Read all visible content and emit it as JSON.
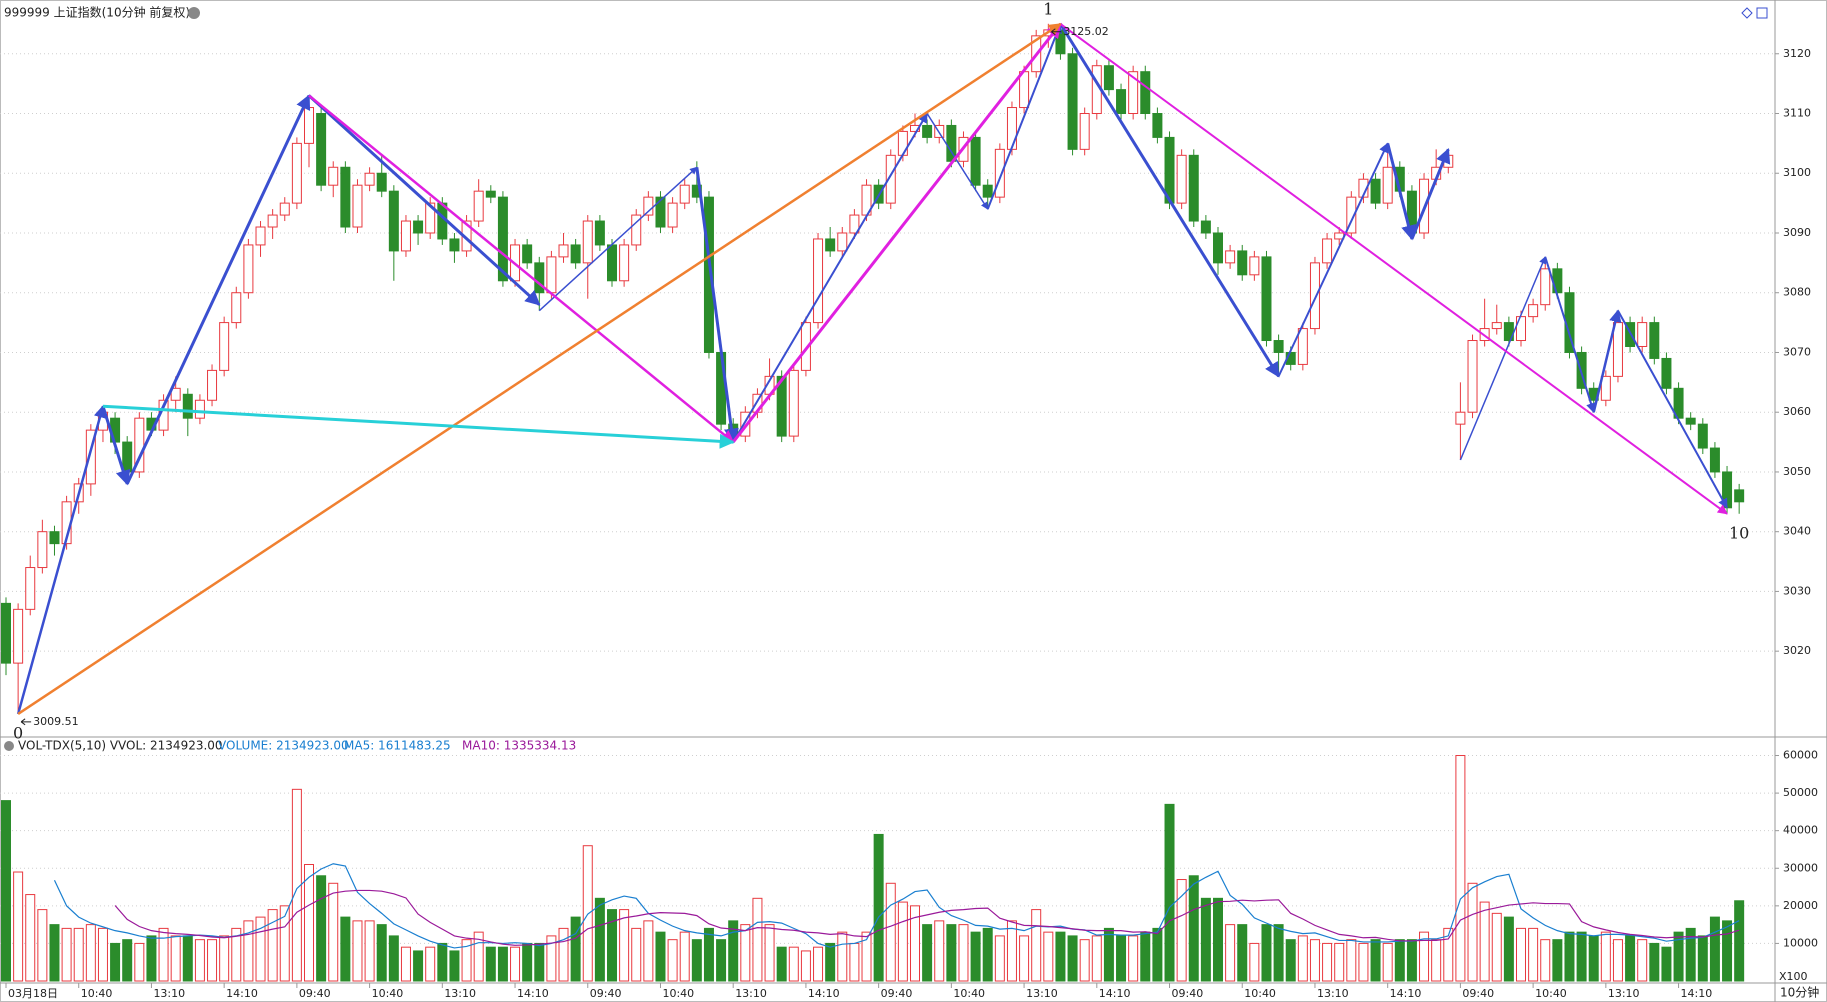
{
  "chart_data": {
    "type": "candlestick",
    "title": "999999 上证指数(10分钟 前复权)",
    "period_label": "10分钟",
    "up_color": "#e8393f",
    "down_color": "#2b8c2b",
    "ylim": [
      3005.8,
      3129
    ],
    "yticks": [
      3020,
      3030,
      3040,
      3050,
      3060,
      3070,
      3080,
      3090,
      3100,
      3110,
      3120
    ],
    "grid": true,
    "xticks": [
      {
        "value": 0,
        "label": "03月18日"
      },
      {
        "value": 6,
        "label": "10:40"
      },
      {
        "value": 12,
        "label": "13:10"
      },
      {
        "value": 18,
        "label": "14:10"
      },
      {
        "value": 24,
        "label": "09:40"
      },
      {
        "value": 30,
        "label": "10:40"
      },
      {
        "value": 36,
        "label": "13:10"
      },
      {
        "value": 42,
        "label": "14:10"
      },
      {
        "value": 48,
        "label": "09:40"
      },
      {
        "value": 54,
        "label": "10:40"
      },
      {
        "value": 60,
        "label": "13:10"
      },
      {
        "value": 66,
        "label": "14:10"
      },
      {
        "value": 72,
        "label": "09:40"
      },
      {
        "value": 78,
        "label": "10:40"
      },
      {
        "value": 84,
        "label": "13:10"
      },
      {
        "value": 90,
        "label": "14:10"
      },
      {
        "value": 96,
        "label": "09:40"
      },
      {
        "value": 102,
        "label": "10:40"
      },
      {
        "value": 108,
        "label": "13:10"
      },
      {
        "value": 114,
        "label": "14:10"
      },
      {
        "value": 120,
        "label": "09:40"
      },
      {
        "value": 126,
        "label": "10:40"
      },
      {
        "value": 132,
        "label": "13:10"
      },
      {
        "value": 138,
        "label": "14:10"
      }
    ],
    "candles": [
      [
        3028,
        3029,
        3016,
        3018
      ],
      [
        3018,
        3028,
        3009.51,
        3027
      ],
      [
        3027,
        3036,
        3026,
        3034
      ],
      [
        3034,
        3042,
        3033,
        3040
      ],
      [
        3040,
        3041,
        3036,
        3038
      ],
      [
        3038,
        3046,
        3037,
        3045
      ],
      [
        3045,
        3049,
        3043,
        3048
      ],
      [
        3048,
        3058,
        3046,
        3057
      ],
      [
        3057,
        3061,
        3055,
        3060
      ],
      [
        3059,
        3060,
        3053,
        3055
      ],
      [
        3055,
        3056,
        3048,
        3050
      ],
      [
        3050,
        3060,
        3049,
        3059
      ],
      [
        3059,
        3060,
        3056,
        3057
      ],
      [
        3057,
        3063,
        3056,
        3062
      ],
      [
        3062,
        3066,
        3060,
        3064
      ],
      [
        3063,
        3064,
        3056,
        3059
      ],
      [
        3059,
        3063,
        3058,
        3062
      ],
      [
        3062,
        3068,
        3061,
        3067
      ],
      [
        3067,
        3076,
        3066,
        3075
      ],
      [
        3075,
        3081,
        3074,
        3080
      ],
      [
        3080,
        3089,
        3079,
        3088
      ],
      [
        3088,
        3092,
        3086,
        3091
      ],
      [
        3091,
        3094,
        3089,
        3093
      ],
      [
        3093,
        3096,
        3092,
        3095
      ],
      [
        3095,
        3106,
        3094,
        3105
      ],
      [
        3105,
        3113,
        3101,
        3111
      ],
      [
        3110,
        3111,
        3097,
        3098
      ],
      [
        3098,
        3102,
        3096,
        3101
      ],
      [
        3101,
        3102,
        3090,
        3091
      ],
      [
        3091,
        3099,
        3090,
        3098
      ],
      [
        3098,
        3101,
        3097,
        3100
      ],
      [
        3100,
        3103,
        3096,
        3097
      ],
      [
        3097,
        3098,
        3082,
        3087
      ],
      [
        3087,
        3093,
        3086,
        3092
      ],
      [
        3092,
        3093,
        3088,
        3090
      ],
      [
        3090,
        3096,
        3089,
        3095
      ],
      [
        3095,
        3096,
        3088,
        3089
      ],
      [
        3089,
        3090,
        3085,
        3087
      ],
      [
        3087,
        3093,
        3086,
        3092
      ],
      [
        3092,
        3099,
        3091,
        3097
      ],
      [
        3097,
        3098,
        3095,
        3096
      ],
      [
        3096,
        3097,
        3081,
        3082
      ],
      [
        3082,
        3089,
        3081,
        3088
      ],
      [
        3088,
        3089,
        3084,
        3085
      ],
      [
        3085,
        3086,
        3077,
        3080
      ],
      [
        3080,
        3087,
        3079,
        3086
      ],
      [
        3086,
        3090,
        3085,
        3088
      ],
      [
        3088,
        3089,
        3084,
        3085
      ],
      [
        3085,
        3093,
        3079,
        3092
      ],
      [
        3092,
        3093,
        3087,
        3088
      ],
      [
        3088,
        3089,
        3081,
        3082
      ],
      [
        3082,
        3089,
        3081,
        3088
      ],
      [
        3088,
        3094,
        3087,
        3093
      ],
      [
        3093,
        3097,
        3092,
        3096
      ],
      [
        3096,
        3097,
        3090,
        3091
      ],
      [
        3091,
        3096,
        3090,
        3095
      ],
      [
        3095,
        3099,
        3094,
        3098
      ],
      [
        3098,
        3102,
        3095,
        3096
      ],
      [
        3096,
        3097,
        3069,
        3070
      ],
      [
        3070,
        3071,
        3057,
        3058
      ],
      [
        3058,
        3059,
        3055,
        3056
      ],
      [
        3056,
        3061,
        3055,
        3060
      ],
      [
        3060,
        3064,
        3059,
        3063
      ],
      [
        3063,
        3069,
        3062,
        3066
      ],
      [
        3066,
        3067,
        3055,
        3056
      ],
      [
        3056,
        3068,
        3055,
        3067
      ],
      [
        3067,
        3076,
        3066,
        3075
      ],
      [
        3075,
        3090,
        3074,
        3089
      ],
      [
        3089,
        3091,
        3086,
        3087
      ],
      [
        3087,
        3091,
        3086,
        3090
      ],
      [
        3090,
        3094,
        3089,
        3093
      ],
      [
        3093,
        3099,
        3092,
        3098
      ],
      [
        3098,
        3099,
        3094,
        3095
      ],
      [
        3095,
        3104,
        3094,
        3103
      ],
      [
        3103,
        3108,
        3102,
        3107
      ],
      [
        3107,
        3110,
        3106,
        3108
      ],
      [
        3108,
        3109,
        3105,
        3106
      ],
      [
        3106,
        3109,
        3105,
        3108
      ],
      [
        3108,
        3109,
        3101,
        3102
      ],
      [
        3102,
        3107,
        3101,
        3106
      ],
      [
        3106,
        3107,
        3097,
        3098
      ],
      [
        3098,
        3099,
        3094,
        3096
      ],
      [
        3096,
        3105,
        3095,
        3104
      ],
      [
        3104,
        3112,
        3103,
        3111
      ],
      [
        3111,
        3118,
        3110,
        3117
      ],
      [
        3117,
        3124,
        3116,
        3123
      ],
      [
        3123,
        3125.02,
        3121,
        3124
      ],
      [
        3124,
        3125,
        3119,
        3120
      ],
      [
        3120,
        3121,
        3103,
        3104
      ],
      [
        3104,
        3111,
        3103,
        3110
      ],
      [
        3110,
        3119,
        3109,
        3118
      ],
      [
        3118,
        3119,
        3113,
        3114
      ],
      [
        3114,
        3115,
        3109,
        3110
      ],
      [
        3110,
        3118,
        3109,
        3117
      ],
      [
        3117,
        3118,
        3109,
        3110
      ],
      [
        3110,
        3111,
        3105,
        3106
      ],
      [
        3106,
        3107,
        3094,
        3095
      ],
      [
        3095,
        3104,
        3094,
        3103
      ],
      [
        3103,
        3104,
        3091,
        3092
      ],
      [
        3092,
        3093,
        3089,
        3090
      ],
      [
        3090,
        3091,
        3083,
        3085
      ],
      [
        3085,
        3088,
        3084,
        3087
      ],
      [
        3087,
        3088,
        3082,
        3083
      ],
      [
        3083,
        3087,
        3082,
        3086
      ],
      [
        3086,
        3087,
        3071,
        3072
      ],
      [
        3072,
        3073,
        3066,
        3070
      ],
      [
        3070,
        3071,
        3067,
        3068
      ],
      [
        3068,
        3075,
        3067,
        3074
      ],
      [
        3074,
        3086,
        3073,
        3085
      ],
      [
        3085,
        3090,
        3084,
        3089
      ],
      [
        3089,
        3091,
        3088,
        3090
      ],
      [
        3090,
        3097,
        3089,
        3096
      ],
      [
        3096,
        3100,
        3095,
        3099
      ],
      [
        3099,
        3100,
        3094,
        3095
      ],
      [
        3095,
        3105,
        3094,
        3101
      ],
      [
        3101,
        3102,
        3096,
        3097
      ],
      [
        3097,
        3098,
        3089,
        3090
      ],
      [
        3090,
        3100,
        3089,
        3099
      ],
      [
        3099,
        3104,
        3098,
        3101
      ],
      [
        3101,
        3104,
        3100,
        3103
      ],
      [
        3058,
        3065,
        3052,
        3060
      ],
      [
        3060,
        3073,
        3059,
        3072
      ],
      [
        3072,
        3079,
        3071,
        3074
      ],
      [
        3074,
        3078,
        3073,
        3075
      ],
      [
        3075,
        3076,
        3071,
        3072
      ],
      [
        3072,
        3077,
        3071,
        3076
      ],
      [
        3076,
        3079,
        3075,
        3078
      ],
      [
        3078,
        3086,
        3077,
        3084
      ],
      [
        3084,
        3085,
        3079,
        3080
      ],
      [
        3080,
        3081,
        3069,
        3070
      ],
      [
        3070,
        3071,
        3063,
        3064
      ],
      [
        3064,
        3065,
        3060,
        3062
      ],
      [
        3062,
        3067,
        3061,
        3066
      ],
      [
        3066,
        3077,
        3065,
        3075
      ],
      [
        3075,
        3076,
        3070,
        3071
      ],
      [
        3071,
        3076,
        3070,
        3075
      ],
      [
        3075,
        3076,
        3068,
        3069
      ],
      [
        3069,
        3070,
        3063,
        3064
      ],
      [
        3064,
        3065,
        3058,
        3059
      ],
      [
        3059,
        3060,
        3057,
        3058
      ],
      [
        3058,
        3059,
        3053,
        3054
      ],
      [
        3054,
        3055,
        3049,
        3050
      ],
      [
        3050,
        3051,
        3043,
        3044
      ],
      [
        3047,
        3048,
        3043,
        3045
      ]
    ],
    "extreme_labels": [
      {
        "text": "3009.51",
        "index": 1,
        "price": 3009.51
      },
      {
        "text": "3125.02",
        "index": 86,
        "price": 3125.02
      }
    ],
    "wave_labels": [
      {
        "text": "0",
        "index": 1,
        "price": 3009.51,
        "side": "below"
      },
      {
        "text": "1",
        "index": 86,
        "price": 3125.02,
        "side": "above"
      },
      {
        "text": "10",
        "index": 143,
        "price": 3043,
        "side": "below"
      }
    ],
    "trend_lines": [
      {
        "color": "#3a4fd0",
        "width": 2.5,
        "from": [
          1,
          3009.5
        ],
        "to": [
          8,
          3061
        ]
      },
      {
        "color": "#3a4fd0",
        "width": 3,
        "from": [
          8,
          3061
        ],
        "to": [
          10,
          3048
        ]
      },
      {
        "color": "#3a4fd0",
        "width": 3,
        "from": [
          10,
          3048
        ],
        "to": [
          25,
          3113
        ]
      },
      {
        "color": "#3a4fd0",
        "width": 3,
        "from": [
          25,
          3113
        ],
        "to": [
          44,
          3078
        ]
      },
      {
        "color": "#3a4fd0",
        "width": 1.5,
        "from": [
          44,
          3077
        ],
        "to": [
          57,
          3101
        ]
      },
      {
        "color": "#3a4fd0",
        "width": 3,
        "from": [
          57,
          3101
        ],
        "to": [
          60,
          3055
        ]
      },
      {
        "color": "#3a4fd0",
        "width": 2,
        "from": [
          60,
          3055
        ],
        "to": [
          76,
          3110
        ]
      },
      {
        "color": "#3a4fd0",
        "width": 1.5,
        "from": [
          76,
          3110
        ],
        "to": [
          81,
          3094
        ]
      },
      {
        "color": "#3a4fd0",
        "width": 2,
        "from": [
          81,
          3094
        ],
        "to": [
          87,
          3125
        ]
      },
      {
        "color": "#3a4fd0",
        "width": 3,
        "from": [
          87,
          3125
        ],
        "to": [
          105,
          3066
        ]
      },
      {
        "color": "#3a4fd0",
        "width": 2,
        "from": [
          105,
          3066
        ],
        "to": [
          114,
          3105
        ]
      },
      {
        "color": "#3a4fd0",
        "width": 3,
        "from": [
          114,
          3105
        ],
        "to": [
          116,
          3089
        ]
      },
      {
        "color": "#3a4fd0",
        "width": 3,
        "from": [
          116,
          3089
        ],
        "to": [
          119,
          3104
        ]
      },
      {
        "color": "#3a4fd0",
        "width": 1.5,
        "from": [
          120,
          3052
        ],
        "to": [
          127,
          3086
        ]
      },
      {
        "color": "#3a4fd0",
        "width": 2,
        "from": [
          127,
          3086
        ],
        "to": [
          131,
          3060
        ]
      },
      {
        "color": "#3a4fd0",
        "width": 2.5,
        "from": [
          131,
          3060
        ],
        "to": [
          133,
          3077
        ]
      },
      {
        "color": "#3a4fd0",
        "width": 2,
        "from": [
          133,
          3077
        ],
        "to": [
          142,
          3044
        ]
      },
      {
        "color": "#e020e0",
        "width": 2.5,
        "from": [
          25,
          3113
        ],
        "to": [
          60,
          3055
        ]
      },
      {
        "color": "#e020e0",
        "width": 3,
        "from": [
          60,
          3055
        ],
        "to": [
          87,
          3125
        ]
      },
      {
        "color": "#e020e0",
        "width": 2,
        "from": [
          87,
          3125
        ],
        "to": [
          142,
          3043
        ]
      },
      {
        "color": "#f08030",
        "width": 2.5,
        "from": [
          1,
          3009.5
        ],
        "to": [
          87,
          3125
        ]
      },
      {
        "color": "#28d0d8",
        "width": 3,
        "from": [
          8,
          3061
        ],
        "to": [
          60,
          3055
        ]
      }
    ],
    "volume": {
      "header": "VOL-TDX(5,10)  VVOL: 2134923.00",
      "volume_label": "VOLUME: 2134923.00",
      "ma5_label": "MA5: 1611483.25",
      "ma10_label": "MA10: 1335334.13",
      "unit_label": "X100",
      "ma5_color": "#1a7fd0",
      "ma10_color": "#9a1a9a",
      "ylim": [
        0,
        62000
      ],
      "yticks": [
        10000,
        20000,
        30000,
        40000,
        50000,
        60000
      ],
      "values": [
        48000,
        29000,
        23000,
        19000,
        15000,
        14000,
        14000,
        15000,
        14000,
        10000,
        11000,
        10000,
        12000,
        14000,
        12000,
        12000,
        11000,
        11000,
        12000,
        14000,
        16000,
        17000,
        19000,
        20000,
        51000,
        31000,
        28000,
        26000,
        17000,
        16000,
        16000,
        15000,
        12000,
        9000,
        8000,
        9000,
        10000,
        8000,
        11000,
        13000,
        9000,
        9000,
        9000,
        10000,
        10000,
        12000,
        14000,
        17000,
        36000,
        22000,
        19000,
        19000,
        14000,
        16000,
        13000,
        11000,
        13000,
        11000,
        14000,
        11000,
        16000,
        15000,
        22000,
        15000,
        9000,
        9000,
        8000,
        9000,
        10000,
        13000,
        10000,
        13000,
        39000,
        26000,
        21000,
        20000,
        15000,
        16000,
        15000,
        15000,
        13000,
        14000,
        12000,
        16000,
        12000,
        19000,
        13000,
        13000,
        12000,
        11000,
        12000,
        14000,
        12000,
        12000,
        13000,
        14000,
        47000,
        27000,
        28000,
        22000,
        22000,
        15000,
        15000,
        10000,
        15000,
        15000,
        11000,
        12000,
        11000,
        10000,
        10000,
        11000,
        10000,
        11000,
        10000,
        11000,
        11000,
        13000,
        11000,
        14000,
        60000,
        26000,
        21000,
        18000,
        17000,
        14000,
        14000,
        11000,
        11000,
        13000,
        13000,
        12000,
        13000,
        11000,
        12000,
        11000,
        10000,
        9000,
        13000,
        14000,
        12000,
        17000,
        16000,
        21349
      ]
    }
  }
}
